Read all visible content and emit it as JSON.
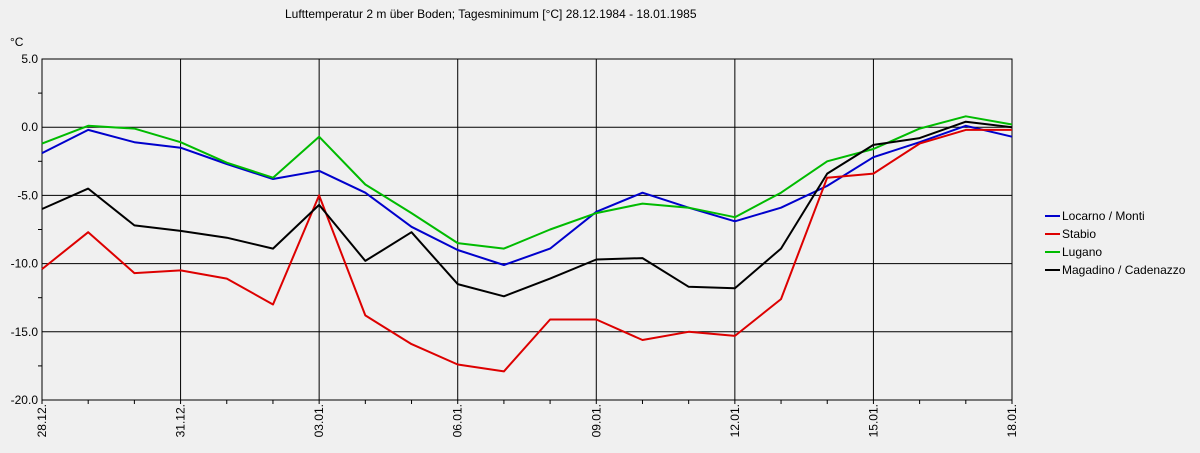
{
  "chart_data": {
    "type": "line",
    "title": "Lufttemperatur 2 m über Boden; Tagesminimum [°C]  28.12.1984 - 18.01.1985",
    "ylabel": "°C",
    "ylim": [
      -20,
      5
    ],
    "yticks": [
      5,
      0,
      -5,
      -10,
      -15,
      -20
    ],
    "ytick_labels": [
      "5.0",
      "0.0",
      "-5.0",
      "-10.0",
      "-15.0",
      "-20.0"
    ],
    "x": [
      "28.12.",
      "29.12.",
      "30.12.",
      "31.12.",
      "01.01.",
      "02.01.",
      "03.01.",
      "04.01.",
      "05.01.",
      "06.01.",
      "07.01.",
      "08.01.",
      "09.01.",
      "10.01.",
      "11.01.",
      "12.01.",
      "13.01.",
      "14.01.",
      "15.01.",
      "16.01.",
      "17.01.",
      "18.01."
    ],
    "xtick_labels": [
      "28.12.",
      "31.12.",
      "03.01.",
      "06.01.",
      "09.01.",
      "12.01.",
      "15.01.",
      "18.01."
    ],
    "xtick_index": [
      0,
      3,
      6,
      9,
      12,
      15,
      18,
      21
    ],
    "grid": true,
    "legend_position": "right",
    "series": [
      {
        "name": "Locarno / Monti",
        "color": "#0000cc",
        "values": [
          -1.9,
          -0.2,
          -1.1,
          -1.5,
          -2.7,
          -3.8,
          -3.2,
          -4.8,
          -7.3,
          -9.0,
          -10.1,
          -8.9,
          -6.2,
          -4.8,
          -5.9,
          -6.9,
          -5.9,
          -4.3,
          -2.2,
          -1.1,
          0.1,
          -0.7
        ]
      },
      {
        "name": "Stabio",
        "color": "#dd0000",
        "values": [
          -10.4,
          -7.7,
          -10.7,
          -10.5,
          -11.1,
          -13.0,
          -5.0,
          -13.8,
          -15.9,
          -17.4,
          -17.9,
          -14.1,
          -14.1,
          -15.6,
          -15.0,
          -15.3,
          -12.6,
          -3.7,
          -3.4,
          -1.2,
          -0.2,
          -0.2
        ]
      },
      {
        "name": "Lugano",
        "color": "#00bb00",
        "values": [
          -1.2,
          0.1,
          -0.1,
          -1.1,
          -2.6,
          -3.7,
          -0.7,
          -4.2,
          -6.3,
          -8.5,
          -8.9,
          -7.5,
          -6.3,
          -5.6,
          -5.9,
          -6.6,
          -4.8,
          -2.5,
          -1.6,
          -0.1,
          0.8,
          0.2
        ]
      },
      {
        "name": "Magadino / Cadenazzo",
        "color": "#000000",
        "values": [
          -6.0,
          -4.5,
          -7.2,
          -7.6,
          -8.1,
          -8.9,
          -5.7,
          -9.8,
          -7.7,
          -11.5,
          -12.4,
          -11.1,
          -9.7,
          -9.6,
          -11.7,
          -11.8,
          -8.9,
          -3.4,
          -1.3,
          -0.8,
          0.4,
          0.0
        ]
      }
    ]
  }
}
